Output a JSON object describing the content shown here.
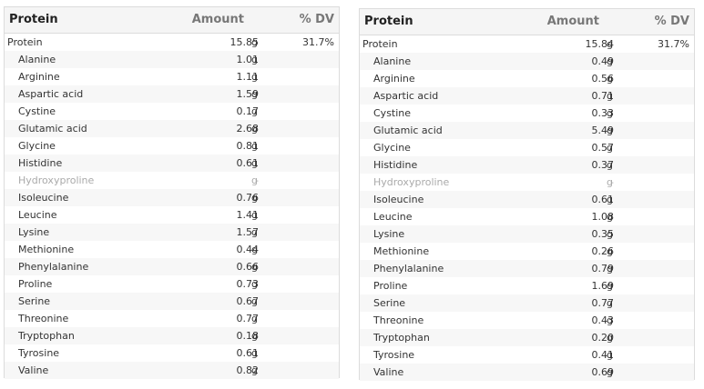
{
  "tables": [
    {
      "header": {
        "name": "Protein",
        "amount": "Amount",
        "dv": "% DV"
      },
      "rows": [
        {
          "name": "Protein",
          "value": "15.85",
          "unit": "g",
          "dv": "31.7%",
          "parent": true
        },
        {
          "name": "Alanine",
          "value": "1.01",
          "unit": "g",
          "dv": ""
        },
        {
          "name": "Arginine",
          "value": "1.11",
          "unit": "g",
          "dv": ""
        },
        {
          "name": "Aspartic acid",
          "value": "1.59",
          "unit": "g",
          "dv": ""
        },
        {
          "name": "Cystine",
          "value": "0.17",
          "unit": "g",
          "dv": ""
        },
        {
          "name": "Glutamic acid",
          "value": "2.68",
          "unit": "g",
          "dv": ""
        },
        {
          "name": "Glycine",
          "value": "0.81",
          "unit": "g",
          "dv": ""
        },
        {
          "name": "Histidine",
          "value": "0.61",
          "unit": "g",
          "dv": ""
        },
        {
          "name": "Hydroxyproline",
          "value": "-",
          "unit": "g",
          "dv": "",
          "na": true
        },
        {
          "name": "Isoleucine",
          "value": "0.76",
          "unit": "g",
          "dv": ""
        },
        {
          "name": "Leucine",
          "value": "1.41",
          "unit": "g",
          "dv": ""
        },
        {
          "name": "Lysine",
          "value": "1.57",
          "unit": "g",
          "dv": ""
        },
        {
          "name": "Methionine",
          "value": "0.44",
          "unit": "g",
          "dv": ""
        },
        {
          "name": "Phenylalanine",
          "value": "0.66",
          "unit": "g",
          "dv": ""
        },
        {
          "name": "Proline",
          "value": "0.73",
          "unit": "g",
          "dv": ""
        },
        {
          "name": "Serine",
          "value": "0.67",
          "unit": "g",
          "dv": ""
        },
        {
          "name": "Threonine",
          "value": "0.77",
          "unit": "g",
          "dv": ""
        },
        {
          "name": "Tryptophan",
          "value": "0.18",
          "unit": "g",
          "dv": ""
        },
        {
          "name": "Tyrosine",
          "value": "0.61",
          "unit": "g",
          "dv": ""
        },
        {
          "name": "Valine",
          "value": "0.82",
          "unit": "g",
          "dv": ""
        }
      ]
    },
    {
      "header": {
        "name": "Protein",
        "amount": "Amount",
        "dv": "% DV"
      },
      "rows": [
        {
          "name": "Protein",
          "value": "15.84",
          "unit": "g",
          "dv": "31.7%",
          "parent": true
        },
        {
          "name": "Alanine",
          "value": "0.49",
          "unit": "g",
          "dv": ""
        },
        {
          "name": "Arginine",
          "value": "0.56",
          "unit": "g",
          "dv": ""
        },
        {
          "name": "Aspartic acid",
          "value": "0.71",
          "unit": "g",
          "dv": ""
        },
        {
          "name": "Cystine",
          "value": "0.33",
          "unit": "g",
          "dv": ""
        },
        {
          "name": "Glutamic acid",
          "value": "5.49",
          "unit": "g",
          "dv": ""
        },
        {
          "name": "Glycine",
          "value": "0.57",
          "unit": "g",
          "dv": ""
        },
        {
          "name": "Histidine",
          "value": "0.37",
          "unit": "g",
          "dv": ""
        },
        {
          "name": "Hydroxyproline",
          "value": "-",
          "unit": "g",
          "dv": "",
          "na": true
        },
        {
          "name": "Isoleucine",
          "value": "0.61",
          "unit": "g",
          "dv": ""
        },
        {
          "name": "Leucine",
          "value": "1.08",
          "unit": "g",
          "dv": ""
        },
        {
          "name": "Lysine",
          "value": "0.35",
          "unit": "g",
          "dv": ""
        },
        {
          "name": "Methionine",
          "value": "0.26",
          "unit": "g",
          "dv": ""
        },
        {
          "name": "Phenylalanine",
          "value": "0.79",
          "unit": "g",
          "dv": ""
        },
        {
          "name": "Proline",
          "value": "1.69",
          "unit": "g",
          "dv": ""
        },
        {
          "name": "Serine",
          "value": "0.77",
          "unit": "g",
          "dv": ""
        },
        {
          "name": "Threonine",
          "value": "0.43",
          "unit": "g",
          "dv": ""
        },
        {
          "name": "Tryptophan",
          "value": "0.20",
          "unit": "g",
          "dv": ""
        },
        {
          "name": "Tyrosine",
          "value": "0.41",
          "unit": "g",
          "dv": ""
        },
        {
          "name": "Valine",
          "value": "0.69",
          "unit": "g",
          "dv": ""
        }
      ]
    }
  ]
}
